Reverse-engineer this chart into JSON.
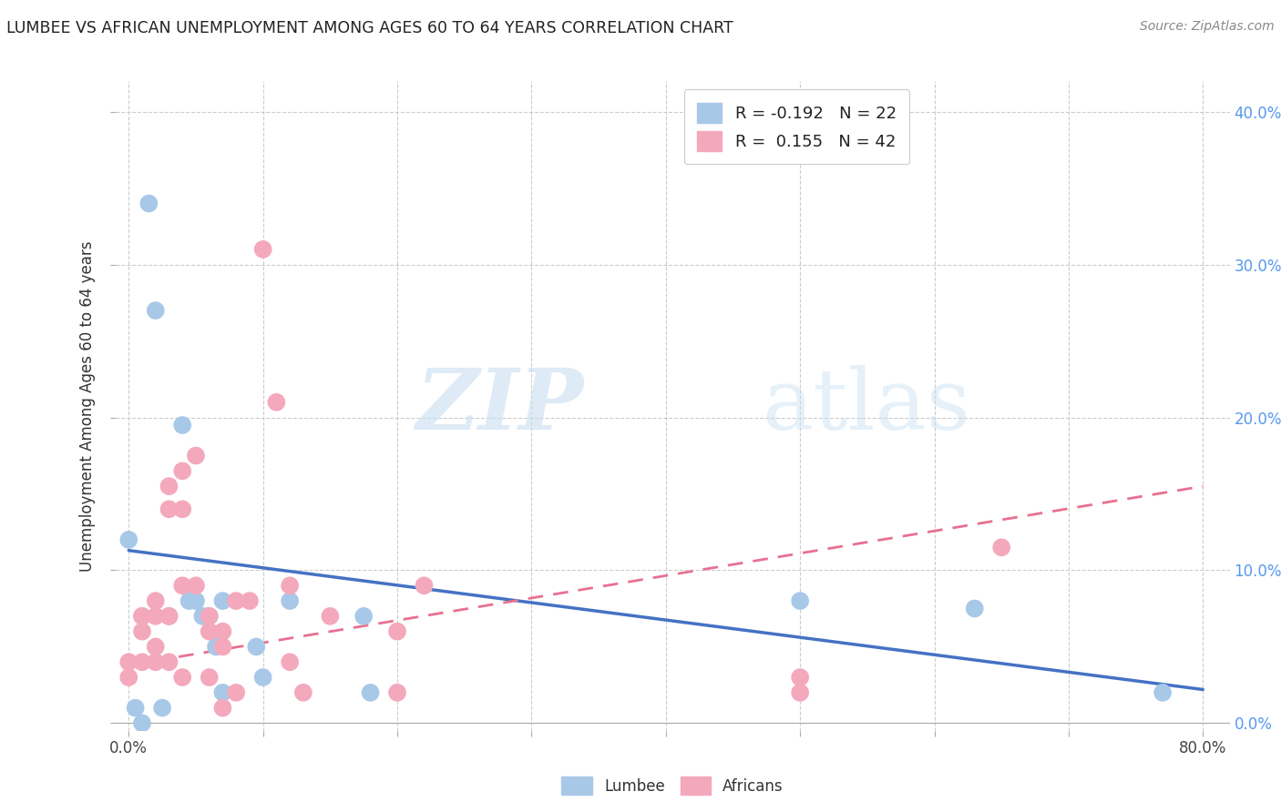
{
  "title": "LUMBEE VS AFRICAN UNEMPLOYMENT AMONG AGES 60 TO 64 YEARS CORRELATION CHART",
  "source": "Source: ZipAtlas.com",
  "ylabel": "Unemployment Among Ages 60 to 64 years",
  "xlim": [
    -0.01,
    0.82
  ],
  "ylim": [
    -0.005,
    0.42
  ],
  "lumbee_R": -0.192,
  "lumbee_N": 22,
  "african_R": 0.155,
  "african_N": 42,
  "lumbee_color": "#a8c8e8",
  "african_color": "#f4a8bc",
  "lumbee_line_color": "#4472c4",
  "african_line_color": "#e87090",
  "legend_label_lumbee": "Lumbee",
  "legend_label_african": "Africans",
  "watermark_zip": "ZIP",
  "watermark_atlas": "atlas",
  "background_color": "#ffffff",
  "grid_color": "#cccccc",
  "right_tick_color": "#5599ee",
  "lumbee_x": [
    0.005,
    0.015,
    0.02,
    0.0,
    0.01,
    0.025,
    0.04,
    0.045,
    0.05,
    0.055,
    0.06,
    0.065,
    0.07,
    0.07,
    0.095,
    0.1,
    0.12,
    0.175,
    0.18,
    0.5,
    0.63,
    0.77
  ],
  "lumbee_y": [
    0.01,
    0.34,
    0.27,
    0.12,
    0.0,
    0.01,
    0.195,
    0.08,
    0.08,
    0.07,
    0.07,
    0.05,
    0.08,
    0.02,
    0.05,
    0.03,
    0.08,
    0.07,
    0.02,
    0.08,
    0.075,
    0.02
  ],
  "african_x": [
    0.0,
    0.0,
    0.01,
    0.01,
    0.01,
    0.01,
    0.02,
    0.02,
    0.02,
    0.02,
    0.03,
    0.03,
    0.03,
    0.03,
    0.03,
    0.04,
    0.04,
    0.04,
    0.04,
    0.05,
    0.05,
    0.06,
    0.06,
    0.06,
    0.07,
    0.07,
    0.07,
    0.08,
    0.08,
    0.09,
    0.1,
    0.11,
    0.12,
    0.12,
    0.13,
    0.15,
    0.2,
    0.2,
    0.22,
    0.5,
    0.5,
    0.65
  ],
  "african_y": [
    0.04,
    0.03,
    0.07,
    0.07,
    0.06,
    0.04,
    0.08,
    0.07,
    0.05,
    0.04,
    0.07,
    0.155,
    0.14,
    0.07,
    0.04,
    0.165,
    0.14,
    0.09,
    0.03,
    0.175,
    0.09,
    0.07,
    0.06,
    0.03,
    0.06,
    0.05,
    0.01,
    0.08,
    0.02,
    0.08,
    0.31,
    0.21,
    0.09,
    0.04,
    0.02,
    0.07,
    0.06,
    0.02,
    0.09,
    0.03,
    0.02,
    0.115
  ],
  "lumbee_line_x0": 0.0,
  "lumbee_line_y0": 0.113,
  "lumbee_line_x1": 0.8,
  "lumbee_line_y1": 0.022,
  "african_line_x0": 0.0,
  "african_line_y0": 0.038,
  "african_line_x1": 0.8,
  "african_line_y1": 0.155
}
